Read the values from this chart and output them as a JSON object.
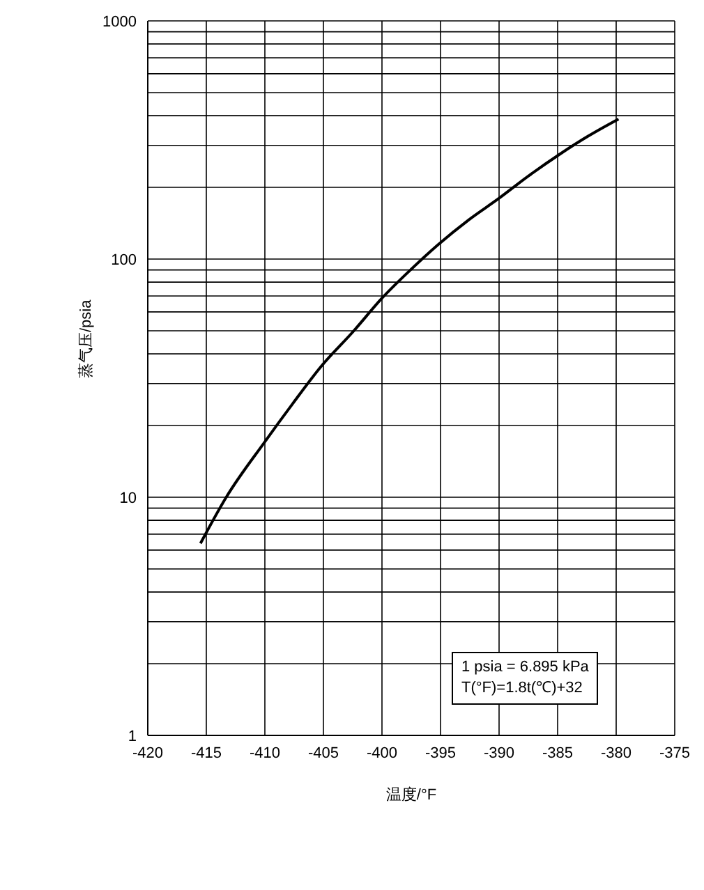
{
  "chart_data": {
    "type": "line",
    "xlabel": "温度/°F",
    "ylabel": "蒸气压/psia",
    "x": [
      -415.5,
      -413.3,
      -410.0,
      -407.6,
      -405.2,
      -402.4,
      -400.0,
      -397.6,
      -395.2,
      -392.6,
      -390.0,
      -387.4,
      -384.8,
      -382.4,
      -379.8
    ],
    "series": [
      {
        "color": "#000000",
        "values": [
          6.4,
          10.0,
          17.1,
          24.8,
          35.4,
          50,
          68.5,
          89.7,
          115,
          146,
          180,
          225,
          276,
          328,
          387
        ]
      }
    ],
    "xlim": [
      -420,
      -375
    ],
    "xticks": [
      -420,
      -415,
      -410,
      -405,
      -400,
      -395,
      -390,
      -385,
      -380,
      -375
    ],
    "ylim": [
      1,
      1000
    ],
    "yticks": [
      1,
      {
        "value": 2,
        "label": null
      },
      {
        "value": 3,
        "label": null
      },
      {
        "value": 4,
        "label": null
      },
      {
        "value": 5,
        "label": null
      },
      {
        "value": 6,
        "label": null
      },
      {
        "value": 7,
        "label": null
      },
      {
        "value": 8,
        "label": null
      },
      {
        "value": 9,
        "label": null
      },
      10,
      {
        "value": 20,
        "label": null
      },
      {
        "value": 30,
        "label": null
      },
      {
        "value": 40,
        "label": null
      },
      {
        "value": 50,
        "label": null
      },
      {
        "value": 60,
        "label": null
      },
      {
        "value": 70,
        "label": null
      },
      {
        "value": 80,
        "label": null
      },
      {
        "value": 90,
        "label": null
      },
      100,
      {
        "value": 200,
        "label": null
      },
      {
        "value": 300,
        "label": null
      },
      {
        "value": 400,
        "label": null
      },
      {
        "value": 500,
        "label": null
      },
      {
        "value": 600,
        "label": null
      },
      {
        "value": 700,
        "label": null
      },
      {
        "value": 800,
        "label": null
      },
      {
        "value": 900,
        "label": null
      },
      1000
    ],
    "log": "y",
    "grid": true,
    "marker": "none",
    "line_style": "solid",
    "annotations": [
      "1 psia = 6.895 kPa",
      "T(°F)=1.8t(℃)+32"
    ]
  }
}
